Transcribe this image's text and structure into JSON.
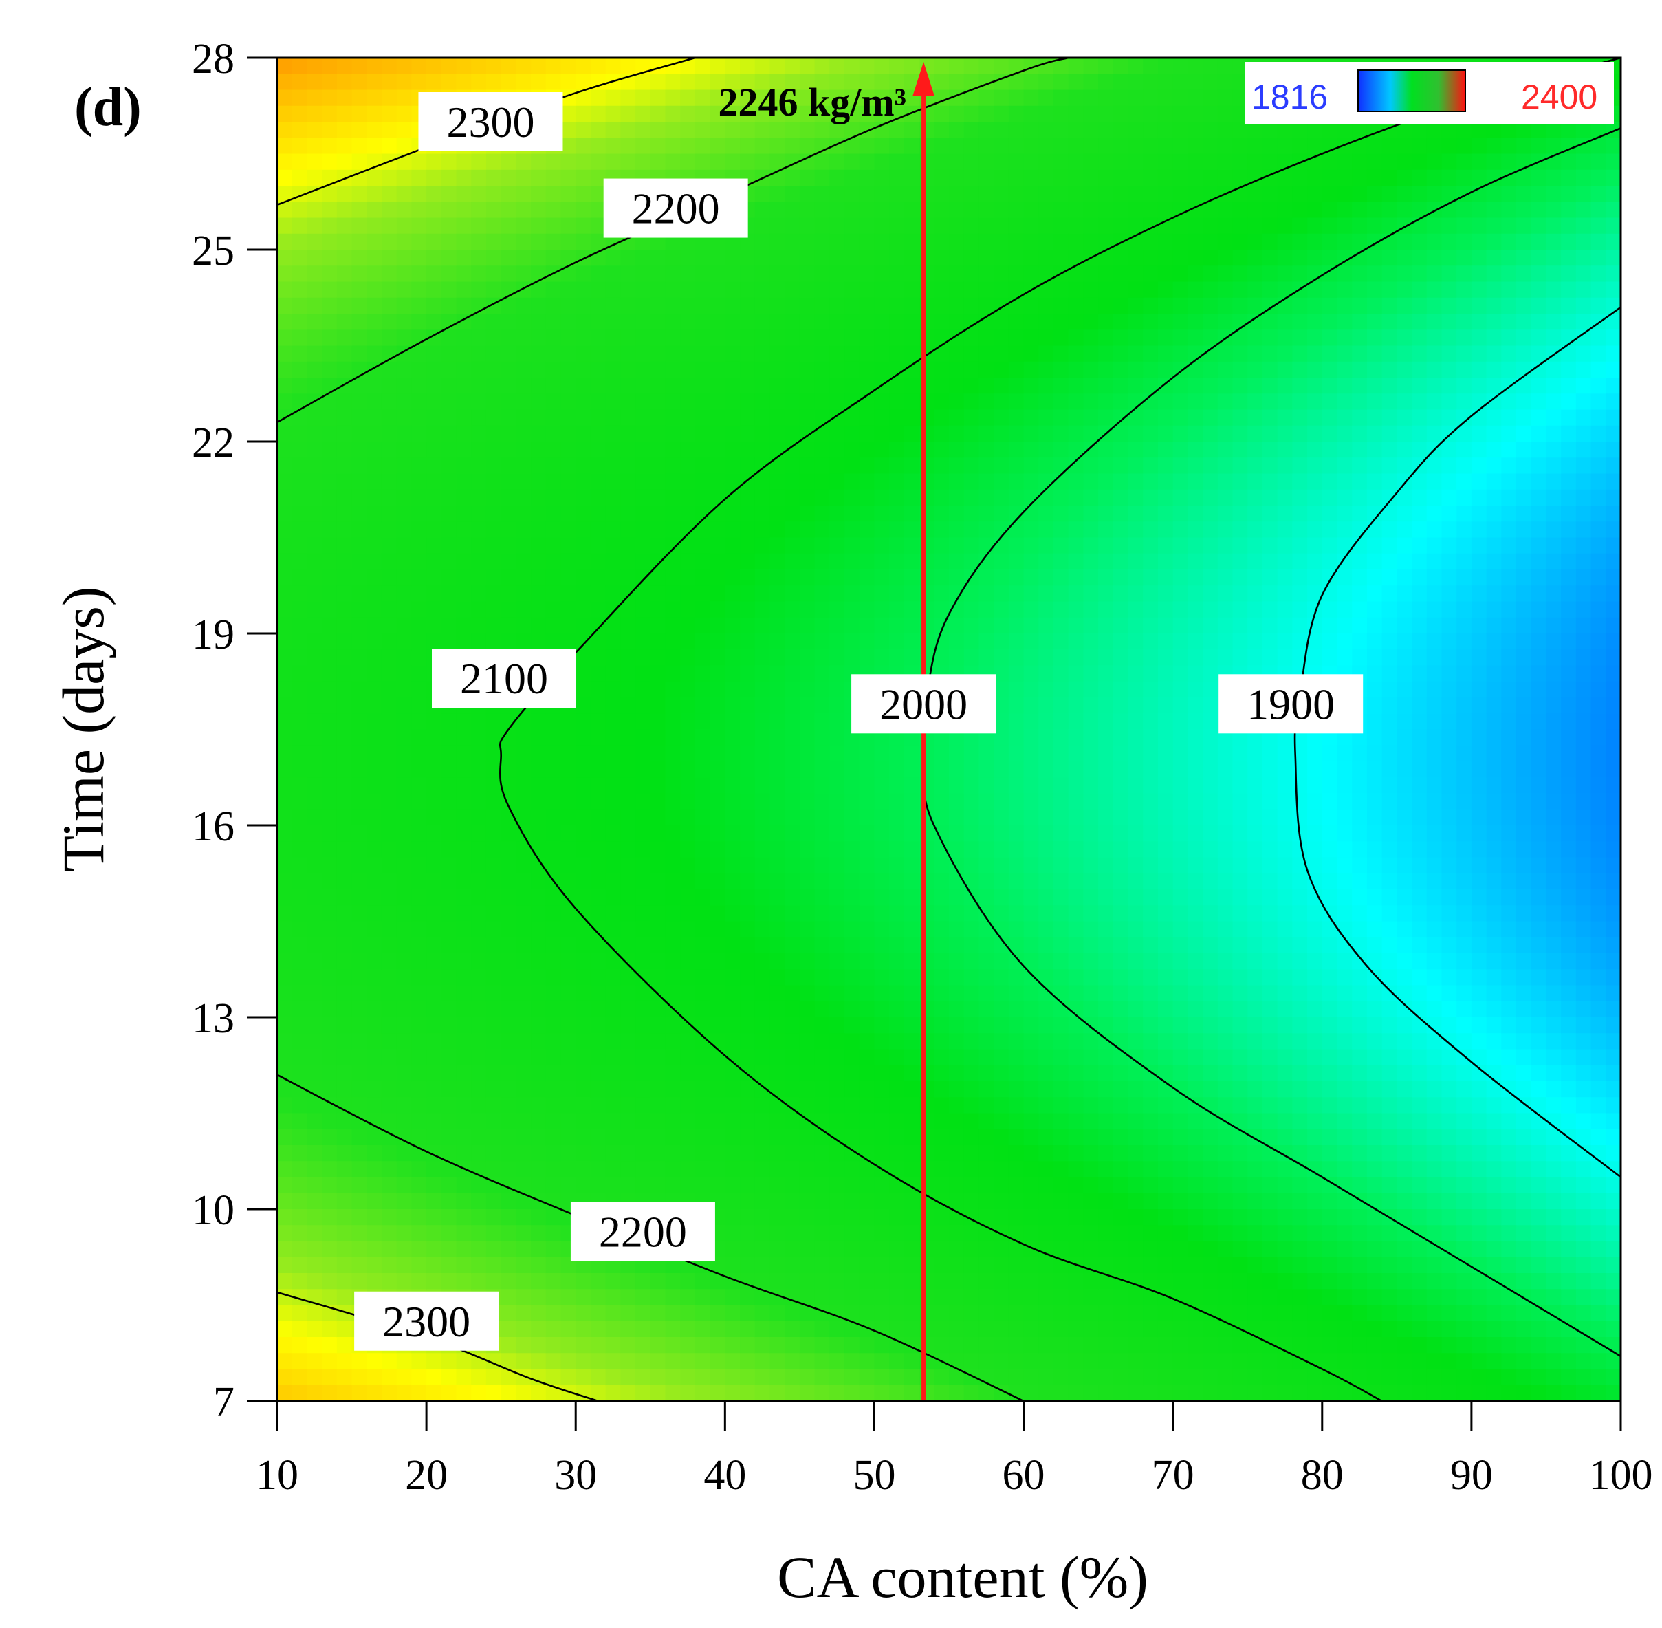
{
  "panel_label": "(d)",
  "chart_data": {
    "type": "heatmap",
    "subtype": "contour",
    "xlabel": "CA content (%)",
    "ylabel": "Time (days)",
    "xlim": [
      10,
      100
    ],
    "ylim": [
      7,
      28
    ],
    "xticks": [
      10,
      20,
      30,
      40,
      50,
      60,
      70,
      80,
      90,
      100
    ],
    "yticks": [
      7,
      10,
      13,
      16,
      19,
      22,
      25,
      28
    ],
    "colorbar": {
      "min_label": "1816",
      "max_label": "2400",
      "min": 1816,
      "max": 2400,
      "min_color": "#2b3cff",
      "max_color": "#ff2a2a"
    },
    "colorscale": [
      "#0000ff",
      "#00ffff",
      "#00ff00",
      "#22dd22",
      "#ffff00",
      "#ff0000"
    ],
    "contours": [
      {
        "level": 2300,
        "label": "2300",
        "points": [
          [
            10,
            25.7
          ],
          [
            20,
            26.6
          ],
          [
            30,
            27.45
          ],
          [
            38,
            28
          ]
        ]
      },
      {
        "level": 2300,
        "label": "2300",
        "points": [
          [
            10,
            8.7
          ],
          [
            20,
            8.0
          ],
          [
            27,
            7.35
          ],
          [
            31.5,
            7
          ]
        ]
      },
      {
        "level": 2200,
        "label": "2200",
        "points": [
          [
            10,
            22.3
          ],
          [
            20,
            23.6
          ],
          [
            30,
            24.8
          ],
          [
            40,
            25.85
          ],
          [
            50,
            26.9
          ],
          [
            60,
            27.8
          ],
          [
            63,
            28
          ]
        ]
      },
      {
        "level": 2200,
        "label": "2200",
        "points": [
          [
            10,
            12.1
          ],
          [
            20,
            10.9
          ],
          [
            30,
            9.9
          ],
          [
            40,
            8.95
          ],
          [
            50,
            8.1
          ],
          [
            60,
            7.0
          ]
        ]
      },
      {
        "level": 2100,
        "label": "2100",
        "points": [
          [
            100,
            28
          ],
          [
            90,
            27.35
          ],
          [
            80,
            26.5
          ],
          [
            70,
            25.5
          ],
          [
            60,
            24.3
          ],
          [
            50,
            22.8
          ],
          [
            40,
            21.1
          ],
          [
            30,
            18.7
          ],
          [
            25.5,
            17.5
          ],
          [
            25,
            17.1
          ],
          [
            25.5,
            16.3
          ],
          [
            30,
            14.7
          ],
          [
            40,
            12.4
          ],
          [
            50,
            10.7
          ],
          [
            60,
            9.45
          ],
          [
            70,
            8.6
          ],
          [
            80,
            7.5
          ],
          [
            84,
            7
          ]
        ]
      },
      {
        "level": 2000,
        "label": "2000",
        "points": [
          [
            100,
            26.9
          ],
          [
            90,
            25.9
          ],
          [
            80,
            24.6
          ],
          [
            70,
            23.0
          ],
          [
            60,
            20.9
          ],
          [
            55,
            19.3
          ],
          [
            53.5,
            18.0
          ],
          [
            53.4,
            17.1
          ],
          [
            54,
            16.0
          ],
          [
            60,
            13.8
          ],
          [
            70,
            11.9
          ],
          [
            80,
            10.5
          ],
          [
            90,
            9.1
          ],
          [
            100,
            7.7
          ]
        ]
      },
      {
        "level": 1900,
        "label": "1900",
        "points": [
          [
            100,
            24.1
          ],
          [
            90,
            22.4
          ],
          [
            85,
            21.2
          ],
          [
            80,
            19.6
          ],
          [
            78.5,
            18.0
          ],
          [
            78.2,
            17.1
          ],
          [
            79,
            15.3
          ],
          [
            83,
            13.8
          ],
          [
            90,
            12.3
          ],
          [
            100,
            10.5
          ]
        ]
      }
    ],
    "contour_labels": [
      {
        "text": "2300",
        "x": 24.3,
        "y": 27.0
      },
      {
        "text": "2200",
        "x": 36.7,
        "y": 25.65
      },
      {
        "text": "2100",
        "x": 25.2,
        "y": 18.3
      },
      {
        "text": "2000",
        "x": 53.3,
        "y": 17.9
      },
      {
        "text": "1900",
        "x": 77.9,
        "y": 17.9
      },
      {
        "text": "2200",
        "x": 34.5,
        "y": 9.65
      },
      {
        "text": "2300",
        "x": 20.0,
        "y": 8.25
      }
    ],
    "marker": {
      "x": 53.3,
      "label": "2246 kg/m³",
      "color": "#ff1a1a"
    }
  }
}
